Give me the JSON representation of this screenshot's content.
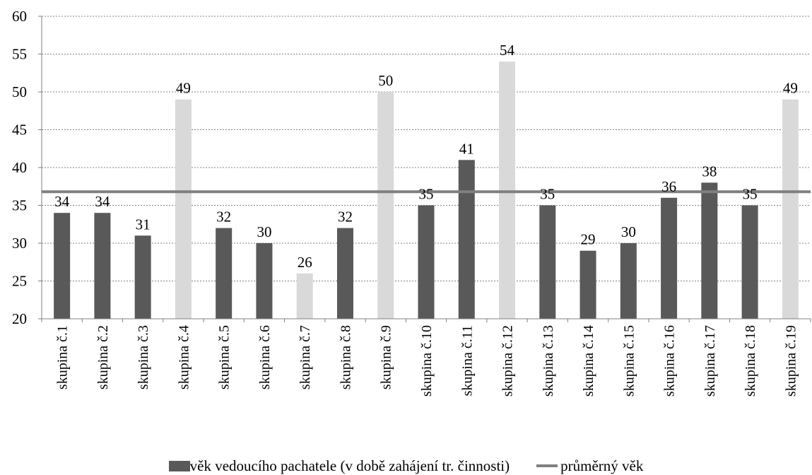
{
  "chart_data": {
    "type": "bar",
    "categories": [
      "skupina č.1",
      "skupina č.2",
      "skupina č.3",
      "skupina č.4",
      "skupina č.5",
      "skupina č.6",
      "skupina č.7",
      "skupina č.8",
      "skupina č.9",
      "skupina č.10",
      "skupina č.11",
      "skupina č.12",
      "skupina č.13",
      "skupina č.14",
      "skupina č.15",
      "skupina č.16",
      "skupina č.17",
      "skupina č.18",
      "skupina č.19"
    ],
    "series": [
      {
        "name": "věk vedoucího pachatele (v době zahájení tr. činnosti)",
        "kind": "bar",
        "values": [
          34,
          34,
          31,
          49,
          32,
          30,
          26,
          32,
          50,
          35,
          41,
          54,
          35,
          29,
          30,
          36,
          38,
          35,
          49
        ]
      },
      {
        "name": "průměrný věk",
        "kind": "line",
        "value": 36.8
      }
    ],
    "bar_colors": [
      "dark",
      "dark",
      "dark",
      "light",
      "dark",
      "dark",
      "light",
      "dark",
      "light",
      "dark",
      "dark",
      "light",
      "dark",
      "dark",
      "dark",
      "dark",
      "dark",
      "dark",
      "light"
    ],
    "colors": {
      "dark": "#595959",
      "light": "#d9d9d9",
      "line": "#808080",
      "grid": "#808080"
    },
    "y_ticks": [
      20,
      25,
      30,
      35,
      40,
      45,
      50,
      55,
      60
    ],
    "ylim": [
      20,
      60
    ],
    "grid": true,
    "legend_position": "bottom",
    "title": "",
    "xlabel": "",
    "ylabel": ""
  }
}
